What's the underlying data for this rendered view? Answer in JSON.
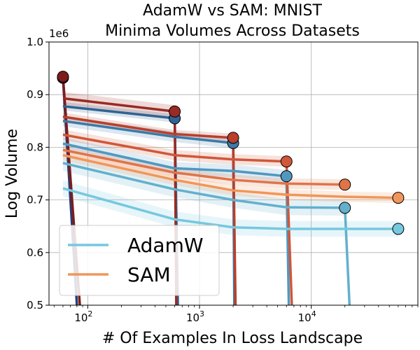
{
  "chart_data": {
    "type": "line",
    "title": [
      "AdamW vs SAM: MNIST",
      "Minima Volumes Across Datasets"
    ],
    "xlabel": "# Of Examples In Loss Landscape",
    "ylabel": "Log Volume",
    "xscale": "log",
    "xlim": [
      45,
      90000
    ],
    "ylim": [
      500000,
      1000000
    ],
    "scale_note": "1e6",
    "y_ticks": [
      {
        "v": 500000,
        "label": "0.5"
      },
      {
        "v": 600000,
        "label": "0.6"
      },
      {
        "v": 700000,
        "label": "0.7"
      },
      {
        "v": 800000,
        "label": "0.8"
      },
      {
        "v": 900000,
        "label": "0.9"
      },
      {
        "v": 1000000,
        "label": "1.0"
      }
    ],
    "x_ticks": [
      {
        "v": 100,
        "base": "10",
        "exp": "2"
      },
      {
        "v": 1000,
        "base": "10",
        "exp": "3"
      },
      {
        "v": 10000,
        "base": "10",
        "exp": "4"
      }
    ],
    "grid": true,
    "legend": {
      "position": "lower-left",
      "entries": [
        {
          "label": "AdamW",
          "color": "#76c8de"
        },
        {
          "label": "SAM",
          "color": "#f0965a"
        }
      ]
    },
    "series": [
      {
        "name": "AdamW 60",
        "optimizer": "AdamW",
        "color": "#243f75",
        "x": [
          60
        ],
        "values": [
          932000
        ],
        "drop_to": {
          "x": 80,
          "y": 500000
        }
      },
      {
        "name": "AdamW 600",
        "optimizer": "AdamW",
        "color": "#2f6494",
        "x": [
          60,
          600
        ],
        "values": [
          878000,
          855000
        ],
        "band": 8000,
        "drop_to": {
          "x": 640,
          "y": 500000
        }
      },
      {
        "name": "AdamW 2000",
        "optimizer": "AdamW",
        "color": "#3c7aa8",
        "x": [
          60,
          600,
          2000
        ],
        "values": [
          850000,
          820000,
          808000
        ],
        "band": 10000,
        "drop_to": {
          "x": 2050,
          "y": 500000
        }
      },
      {
        "name": "AdamW 6000",
        "optimizer": "AdamW",
        "color": "#4f98c0",
        "x": [
          60,
          600,
          2000,
          6000
        ],
        "values": [
          807000,
          760000,
          755000,
          745000
        ],
        "band": 12000,
        "drop_to": {
          "x": 6300,
          "y": 500000
        }
      },
      {
        "name": "AdamW 20000",
        "optimizer": "AdamW",
        "color": "#63b0cd",
        "x": [
          60,
          600,
          2000,
          6000,
          20000
        ],
        "values": [
          770000,
          720000,
          700000,
          686000,
          685000
        ],
        "band": 15000,
        "drop_to": {
          "x": 22000,
          "y": 500000
        }
      },
      {
        "name": "AdamW 60000",
        "optimizer": "AdamW",
        "color": "#76c8de",
        "x": [
          60,
          600,
          2000,
          6000,
          20000,
          60000
        ],
        "values": [
          722000,
          663000,
          648000,
          645000,
          645000,
          645000
        ],
        "band": 15000
      },
      {
        "name": "SAM 60",
        "optimizer": "SAM",
        "color": "#7d1c1c",
        "x": [
          60
        ],
        "values": [
          934000
        ],
        "drop_to": {
          "x": 85,
          "y": 500000
        }
      },
      {
        "name": "SAM 600",
        "optimizer": "SAM",
        "color": "#9a2a24",
        "x": [
          60,
          600
        ],
        "values": [
          893000,
          868000
        ],
        "band": 12000,
        "drop_to": {
          "x": 620,
          "y": 500000
        }
      },
      {
        "name": "SAM 2000",
        "optimizer": "SAM",
        "color": "#b8402c",
        "x": [
          60,
          600,
          2000
        ],
        "values": [
          858000,
          825000,
          818000
        ],
        "band": 8000,
        "drop_to": {
          "x": 2100,
          "y": 500000
        }
      },
      {
        "name": "SAM 6000",
        "optimizer": "SAM",
        "color": "#d0573a",
        "x": [
          60,
          600,
          2000,
          6000
        ],
        "values": [
          824000,
          785000,
          777000,
          773000
        ],
        "band": 10000,
        "drop_to": {
          "x": 6700,
          "y": 500000
        }
      },
      {
        "name": "SAM 20000",
        "optimizer": "SAM",
        "color": "#e07448",
        "x": [
          60,
          600,
          2000,
          6000,
          20000
        ],
        "values": [
          795000,
          752000,
          738000,
          731000,
          729000
        ],
        "band": 10000
      },
      {
        "name": "SAM 60000",
        "optimizer": "SAM",
        "color": "#f0965a",
        "x": [
          60,
          600,
          2000,
          6000,
          20000,
          60000
        ],
        "values": [
          785000,
          738000,
          718000,
          710000,
          706000,
          704000
        ],
        "band": 10000
      }
    ]
  }
}
